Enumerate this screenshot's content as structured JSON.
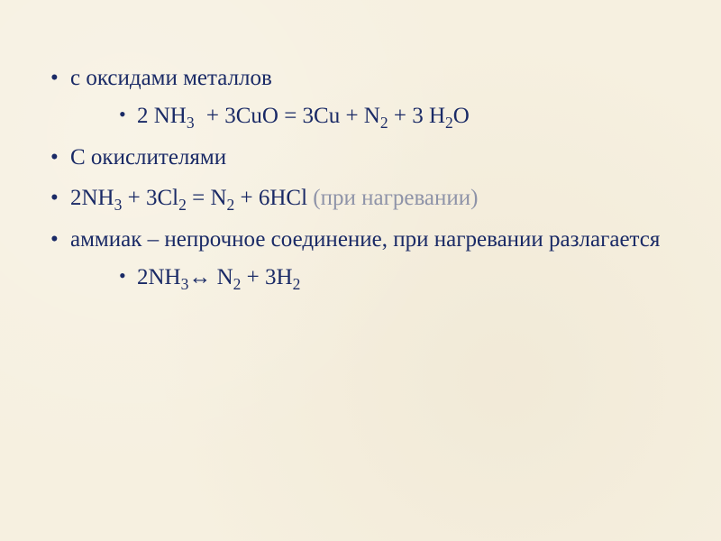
{
  "slide": {
    "background_color": "#f6f0e0",
    "text_color": "#1a2a66",
    "faded_color": "#8e93a8",
    "font_family": "Times New Roman",
    "body_fontsize_pt": 19,
    "bullets": [
      {
        "text": "с оксидами металлов",
        "children": [
          {
            "formula_html": "2 NH<sub>3</sub><span class='sp'></span> + 3CuO = 3Cu + N<sub>2</sub> + 3 H<sub>2</sub>O"
          }
        ]
      },
      {
        "text": "С окислителями"
      },
      {
        "formula_html": "2NH<sub>3</sub> + 3Cl<sub>2</sub> = N<sub>2</sub> + 6HCl <span class='faded'>(при нагревании)</span>"
      },
      {
        "text": "аммиак – непрочное соединение, при нагревании разлагается",
        "children": [
          {
            "formula_html": "2NH<sub>3</sub>↔ N<sub>2</sub> + 3H<sub>2</sub>"
          }
        ]
      }
    ]
  }
}
